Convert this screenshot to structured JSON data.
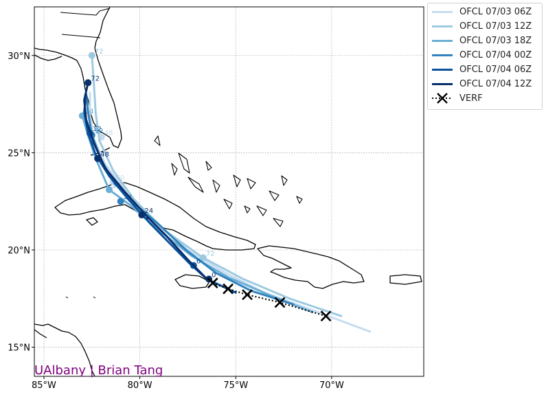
{
  "map": {
    "credit": "UAlbany | Brian Tang",
    "credit_color": "#800080",
    "lon_range": [
      -85.5,
      -65.2
    ],
    "lat_range": [
      13.5,
      32.5
    ],
    "lon_ticks": [
      {
        "value": -85,
        "label": "85°W"
      },
      {
        "value": -80,
        "label": "80°W"
      },
      {
        "value": -75,
        "label": "75°W"
      },
      {
        "value": -70,
        "label": "70°W"
      }
    ],
    "lat_ticks": [
      {
        "value": 15,
        "label": "15°N"
      },
      {
        "value": 20,
        "label": "20°N"
      },
      {
        "value": 25,
        "label": "25°N"
      },
      {
        "value": 30,
        "label": "30°N"
      }
    ],
    "grid": true
  },
  "legend": {
    "placement": "outside-upper-right",
    "items": [
      {
        "label": "OFCL 07/03 06Z",
        "color": "#c6dbef",
        "style": "line"
      },
      {
        "label": "OFCL 07/03 12Z",
        "color": "#9ecae1",
        "style": "line"
      },
      {
        "label": "OFCL 07/03 18Z",
        "color": "#6baed6",
        "style": "line"
      },
      {
        "label": "OFCL 07/04 00Z",
        "color": "#3182bd",
        "style": "line"
      },
      {
        "label": "OFCL 07/04 06Z",
        "color": "#08519c",
        "style": "line"
      },
      {
        "label": "OFCL 07/04 12Z",
        "color": "#08306b",
        "style": "line"
      },
      {
        "label": "VERF",
        "color": "#000000",
        "style": "verf"
      }
    ]
  },
  "chart_data": {
    "type": "map-track",
    "verification": [
      {
        "lon": -70.3,
        "lat": 16.6
      },
      {
        "lon": -72.7,
        "lat": 17.3
      },
      {
        "lon": -74.4,
        "lat": 17.7
      },
      {
        "lon": -75.4,
        "lat": 18.0
      },
      {
        "lon": -76.2,
        "lat": 18.3
      }
    ],
    "forecasts": [
      {
        "name": "OFCL 07/03 06Z",
        "color": "#c6dbef",
        "track": [
          [
            -68.0,
            15.8
          ],
          [
            -71.0,
            16.9
          ],
          [
            -73.5,
            17.8
          ],
          [
            -75.5,
            18.8
          ],
          [
            -77.5,
            20.0
          ],
          [
            -79.3,
            21.5
          ],
          [
            -80.7,
            23.0
          ],
          [
            -81.8,
            24.4
          ],
          [
            -82.4,
            25.7
          ],
          [
            -82.6,
            26.9
          ],
          [
            -82.6,
            28.1
          ]
        ],
        "markers": [
          {
            "lon": -81.4,
            "lat": 23.5,
            "label": "60"
          },
          {
            "lon": -82.0,
            "lat": 25.8,
            "label": "48"
          }
        ]
      },
      {
        "name": "OFCL 07/03 12Z",
        "color": "#9ecae1",
        "track": [
          [
            -69.5,
            16.6
          ],
          [
            -72.2,
            17.5
          ],
          [
            -74.6,
            18.5
          ],
          [
            -76.7,
            19.6
          ],
          [
            -78.7,
            21.0
          ],
          [
            -80.3,
            22.6
          ],
          [
            -81.4,
            24.1
          ],
          [
            -82.1,
            25.6
          ],
          [
            -82.3,
            27.0
          ],
          [
            -82.4,
            28.6
          ],
          [
            -82.5,
            30.0
          ]
        ],
        "markers": [
          {
            "lon": -76.7,
            "lat": 19.6,
            "label": "72"
          },
          {
            "lon": -82.5,
            "lat": 30.0,
            "label": "72"
          }
        ]
      },
      {
        "name": "OFCL 07/03 18Z",
        "color": "#6baed6",
        "track": [
          [
            -71.0,
            16.8
          ],
          [
            -73.3,
            17.7
          ],
          [
            -75.4,
            18.6
          ],
          [
            -77.3,
            19.7
          ],
          [
            -79.0,
            21.0
          ],
          [
            -80.5,
            22.3
          ],
          [
            -81.6,
            23.1
          ],
          [
            -82.3,
            24.7
          ],
          [
            -82.7,
            25.9
          ],
          [
            -83.0,
            26.9
          ]
        ],
        "markers": [
          {
            "lon": -81.6,
            "lat": 23.1,
            "label": "36"
          },
          {
            "lon": -83.0,
            "lat": 26.9,
            "label": "24"
          }
        ]
      },
      {
        "name": "OFCL 07/04 00Z",
        "color": "#3182bd",
        "track": [
          [
            -72.0,
            17.2
          ],
          [
            -74.2,
            17.9
          ],
          [
            -76.0,
            18.8
          ],
          [
            -77.6,
            20.0
          ],
          [
            -79.0,
            21.3
          ],
          [
            -80.3,
            22.4
          ],
          [
            -81.3,
            23.4
          ],
          [
            -82.0,
            24.6
          ],
          [
            -82.5,
            25.9
          ],
          [
            -82.7,
            27.1
          ],
          [
            -82.8,
            28.0
          ]
        ],
        "markers": [
          {
            "lon": -81.0,
            "lat": 22.5,
            "label": "24"
          },
          {
            "lon": -82.5,
            "lat": 25.9,
            "label": "12"
          }
        ]
      },
      {
        "name": "OFCL 07/04 06Z",
        "color": "#08519c",
        "track": [
          [
            -75.0,
            17.8
          ],
          [
            -76.5,
            18.5
          ],
          [
            -77.4,
            19.3
          ],
          [
            -78.4,
            20.3
          ],
          [
            -79.5,
            21.4
          ],
          [
            -80.6,
            22.6
          ],
          [
            -81.6,
            23.8
          ],
          [
            -82.3,
            24.9
          ],
          [
            -82.7,
            26.0
          ],
          [
            -82.9,
            27.1
          ],
          [
            -82.8,
            28.0
          ]
        ],
        "markers": [
          {
            "lon": -77.2,
            "lat": 19.2,
            "label": "6"
          },
          {
            "lon": -82.6,
            "lat": 26.0,
            "label": "12"
          }
        ]
      },
      {
        "name": "OFCL 07/04 12Z",
        "color": "#08306b",
        "track": [
          [
            -76.4,
            18.4
          ],
          [
            -77.5,
            19.5
          ],
          [
            -78.6,
            20.7
          ],
          [
            -79.7,
            21.8
          ],
          [
            -80.8,
            23.0
          ],
          [
            -81.8,
            24.2
          ],
          [
            -82.4,
            25.5
          ],
          [
            -82.8,
            26.7
          ],
          [
            -82.9,
            27.7
          ],
          [
            -82.7,
            28.6
          ]
        ],
        "markers": [
          {
            "lon": -76.4,
            "lat": 18.5,
            "label": "0"
          },
          {
            "lon": -79.9,
            "lat": 21.8,
            "label": "24"
          },
          {
            "lon": -82.2,
            "lat": 24.7,
            "label": "48"
          },
          {
            "lon": -82.7,
            "lat": 28.6,
            "label": "72"
          }
        ]
      }
    ]
  }
}
